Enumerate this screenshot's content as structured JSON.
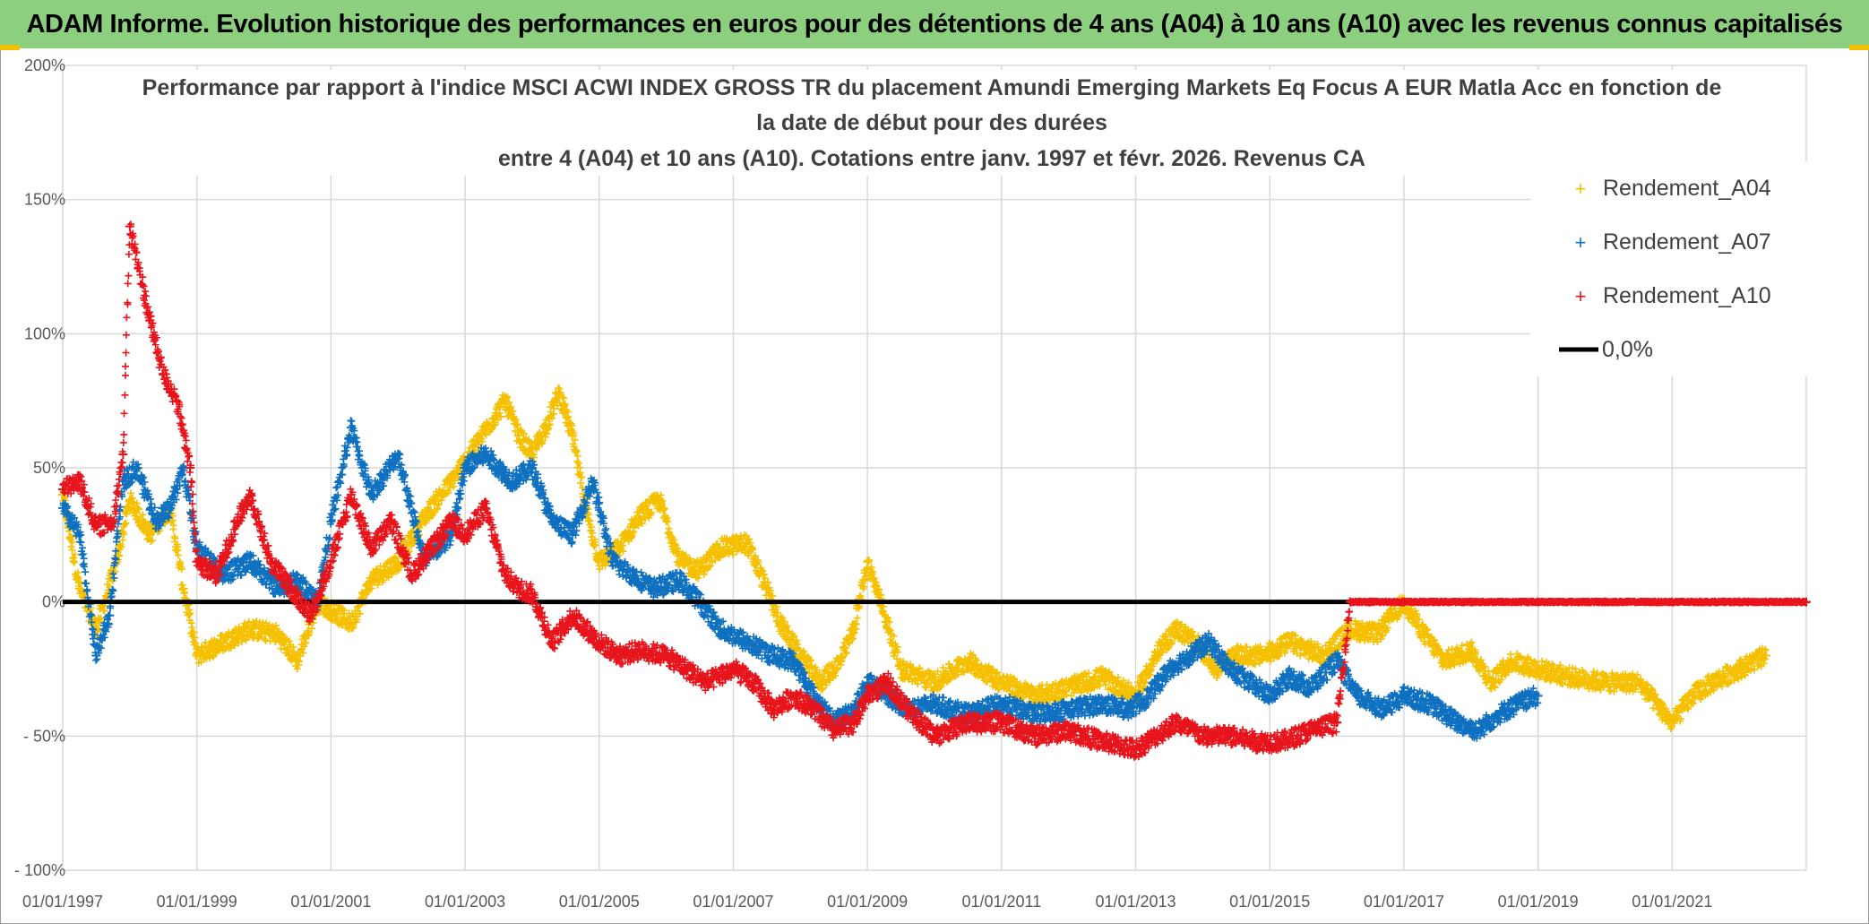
{
  "banner": {
    "title": "ADAM Informe. Evolution historique des performances en euros pour des détentions de 4 ans (A04) à 10 ans (A10) avec les revenus connus capitalisés"
  },
  "colors": {
    "banner": "#8bcf7f",
    "A04": "#f5c000",
    "A07": "#0f70c0",
    "A10": "#e8141c",
    "zero": "#000000",
    "grid": "#d9d9d9"
  },
  "chart_data": {
    "type": "scatter",
    "title_lines": [
      "Performance par rapport à l'indice MSCI ACWI INDEX GROSS TR  du placement Amundi Emerging Markets Eq Focus A EUR Matla Acc en fonction de",
      "la date de début pour des durées",
      "entre 4 (A04) et 10 ans (A10). Cotations entre janv. 1997 et févr. 2026. Revenus CA"
    ],
    "xlim": [
      1997.0,
      2023.0
    ],
    "ylim": [
      -100,
      200
    ],
    "x_tick_labels": [
      "01/01/1997",
      "01/01/1999",
      "01/01/2001",
      "01/01/2003",
      "01/01/2005",
      "01/01/2007",
      "01/01/2009",
      "01/01/2011",
      "01/01/2013",
      "01/01/2015",
      "01/01/2017",
      "01/01/2019",
      "01/01/2021"
    ],
    "x_tick_values": [
      1997,
      1999,
      2001,
      2003,
      2005,
      2007,
      2009,
      2011,
      2013,
      2015,
      2017,
      2019,
      2021
    ],
    "y_tick_labels": [
      "200%",
      "150%",
      "100%",
      "50%",
      "0%",
      "- 50%",
      "- 100%"
    ],
    "y_tick_values": [
      200,
      150,
      100,
      50,
      0,
      -50,
      -100
    ],
    "legend": [
      "Rendement_A04",
      "Rendement_A07",
      "Rendement_A10",
      "0,0%"
    ],
    "reference_line": 0,
    "series": [
      {
        "name": "Rendement_A04",
        "color": "#f5c000",
        "x": [
          1997.0,
          1997.25,
          1997.5,
          1997.8,
          1998.0,
          1998.3,
          1998.6,
          1998.8,
          1999.0,
          1999.4,
          1999.8,
          2000.2,
          2000.5,
          2000.8,
          2001.0,
          2001.3,
          2001.6,
          2002.0,
          2002.4,
          2002.8,
          2003.2,
          2003.6,
          2003.8,
          2004.0,
          2004.2,
          2004.4,
          2004.6,
          2004.8,
          2005.0,
          2005.3,
          2005.6,
          2005.9,
          2006.2,
          2006.5,
          2006.8,
          2007.2,
          2007.5,
          2007.7,
          2008.0,
          2008.3,
          2008.6,
          2008.8,
          2009.0,
          2009.2,
          2009.5,
          2010.0,
          2010.5,
          2011.0,
          2011.5,
          2012.0,
          2012.5,
          2013.0,
          2013.3,
          2013.6,
          2013.9,
          2014.2,
          2014.5,
          2014.9,
          2015.3,
          2015.8,
          2016.2,
          2016.6,
          2017.0,
          2017.3,
          2017.6,
          2018.0,
          2018.3,
          2018.6,
          2019.0,
          2019.5,
          2020.0,
          2020.5,
          2021.0,
          2021.3,
          2021.6,
          2022.0,
          2022.4
        ],
        "values": [
          40,
          5,
          -10,
          15,
          38,
          25,
          35,
          5,
          -20,
          -15,
          -10,
          -12,
          -22,
          0,
          -3,
          -8,
          8,
          15,
          32,
          45,
          60,
          75,
          62,
          55,
          65,
          78,
          62,
          35,
          15,
          20,
          32,
          38,
          15,
          12,
          20,
          22,
          5,
          -8,
          -20,
          -30,
          -22,
          -10,
          15,
          0,
          -25,
          -30,
          -22,
          -30,
          -35,
          -32,
          -28,
          -35,
          -20,
          -10,
          -15,
          -25,
          -20,
          -20,
          -15,
          -20,
          -10,
          -12,
          0,
          -12,
          -22,
          -18,
          -30,
          -22,
          -25,
          -28,
          -30,
          -30,
          -45,
          -35,
          -30,
          -25,
          -20
        ]
      },
      {
        "name": "Rendement_A07",
        "color": "#0f70c0",
        "x": [
          1997.0,
          1997.25,
          1997.5,
          1997.7,
          1997.9,
          1998.1,
          1998.4,
          1998.6,
          1998.8,
          1999.0,
          1999.4,
          1999.8,
          2000.2,
          2000.5,
          2000.8,
          2001.0,
          2001.3,
          2001.6,
          2002.0,
          2002.4,
          2002.8,
          2003.0,
          2003.3,
          2003.7,
          2004.0,
          2004.3,
          2004.6,
          2004.9,
          2005.2,
          2005.5,
          2005.8,
          2006.2,
          2006.5,
          2006.8,
          2007.2,
          2007.6,
          2007.9,
          2008.2,
          2008.5,
          2008.8,
          2009.0,
          2009.3,
          2009.6,
          2010.0,
          2010.5,
          2011.0,
          2011.5,
          2012.0,
          2012.5,
          2012.9,
          2013.2,
          2013.5,
          2013.8,
          2014.1,
          2014.4,
          2014.7,
          2015.0,
          2015.3,
          2015.6,
          2016.0,
          2016.3,
          2016.7,
          2017.0,
          2017.4,
          2017.8,
          2018.1,
          2018.4,
          2018.7,
          2019.0
        ],
        "values": [
          35,
          25,
          -20,
          -5,
          45,
          50,
          30,
          35,
          50,
          20,
          10,
          15,
          5,
          8,
          0,
          30,
          65,
          40,
          55,
          15,
          25,
          50,
          55,
          45,
          50,
          30,
          25,
          45,
          15,
          10,
          5,
          8,
          0,
          -10,
          -15,
          -20,
          -22,
          -35,
          -45,
          -40,
          -30,
          -35,
          -40,
          -38,
          -42,
          -38,
          -42,
          -40,
          -38,
          -40,
          -35,
          -25,
          -20,
          -15,
          -25,
          -30,
          -35,
          -28,
          -32,
          -22,
          -35,
          -40,
          -35,
          -38,
          -45,
          -48,
          -42,
          -38,
          -35
        ]
      },
      {
        "name": "Rendement_A10",
        "color": "#e8141c",
        "x": [
          1997.0,
          1997.25,
          1997.5,
          1997.75,
          1997.9,
          1998.0,
          1998.3,
          1998.5,
          1998.7,
          1998.9,
          1999.0,
          1999.3,
          1999.6,
          1999.8,
          2000.1,
          2000.4,
          2000.7,
          2001.0,
          2001.3,
          2001.6,
          2001.9,
          2002.2,
          2002.5,
          2002.8,
          2003.0,
          2003.3,
          2003.6,
          2003.8,
          2004.0,
          2004.3,
          2004.6,
          2005.0,
          2005.3,
          2005.6,
          2006.0,
          2006.3,
          2006.6,
          2007.0,
          2007.3,
          2007.6,
          2007.9,
          2008.2,
          2008.5,
          2008.8,
          2009.0,
          2009.3,
          2009.6,
          2010.0,
          2010.5,
          2011.0,
          2011.5,
          2012.0,
          2012.5,
          2013.0,
          2013.3,
          2013.6,
          2014.0,
          2014.4,
          2014.8,
          2015.2,
          2015.6,
          2016.0,
          2016.2,
          2016.5,
          2017.0,
          2018.0,
          2019.0,
          2020.0,
          2021.0,
          2022.0,
          2023.0
        ],
        "values": [
          42,
          45,
          28,
          30,
          55,
          140,
          105,
          85,
          75,
          50,
          15,
          10,
          30,
          40,
          15,
          5,
          -5,
          15,
          40,
          20,
          30,
          10,
          20,
          30,
          25,
          35,
          10,
          5,
          3,
          -15,
          -5,
          -15,
          -20,
          -18,
          -20,
          -25,
          -30,
          -25,
          -30,
          -40,
          -35,
          -40,
          -48,
          -45,
          -35,
          -30,
          -40,
          -50,
          -45,
          -45,
          -50,
          -48,
          -52,
          -55,
          -50,
          -45,
          -50,
          -50,
          -52,
          -52,
          -48,
          -45,
          0,
          0,
          0,
          0,
          0,
          0,
          0,
          0,
          0
        ]
      }
    ]
  }
}
